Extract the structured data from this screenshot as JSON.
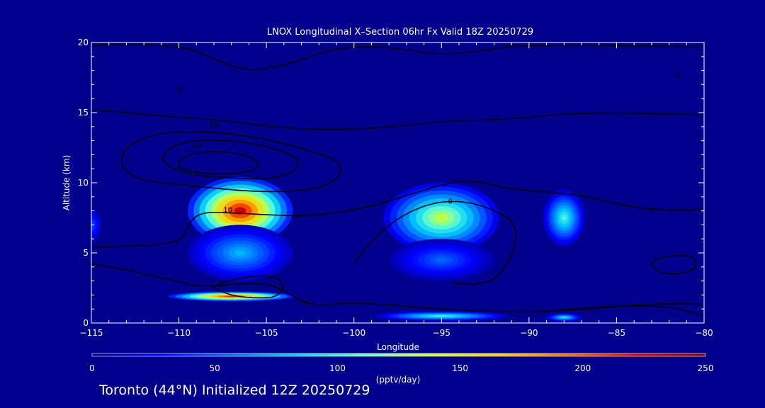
{
  "chart_data": {
    "type": "heatmap",
    "title": "LNOX Longitudinal X–Section 06hr  Fx Valid 18Z 20250729",
    "xlabel": "Longitude",
    "ylabel": "Altitude (km)",
    "xlim": [
      -115,
      -80
    ],
    "ylim": [
      0,
      20
    ],
    "x_ticks": [
      -115,
      -110,
      -105,
      -100,
      -95,
      -90,
      -85,
      -80
    ],
    "x_tick_labels": [
      "−115",
      "−110",
      "−105",
      "−100",
      "−95",
      "−90",
      "−85",
      "−80"
    ],
    "y_ticks": [
      0,
      5,
      10,
      15,
      20
    ],
    "y_tick_labels": [
      "0",
      "5",
      "10",
      "15",
      "20"
    ],
    "colorbar": {
      "label": "(pptv/day)",
      "range": [
        0,
        250
      ],
      "ticks": [
        0,
        50,
        100,
        150,
        200,
        250
      ],
      "tick_labels": [
        "0",
        "50",
        "100",
        "150",
        "200",
        "250"
      ],
      "colors": [
        "#00008c",
        "#0000ff",
        "#0066ff",
        "#00ccff",
        "#66ffcc",
        "#ccff33",
        "#ffcc00",
        "#ff6600",
        "#dd0000",
        "#8b0000"
      ]
    },
    "cells": [
      {
        "name": "cell-west-upper",
        "lon": -106.5,
        "alt": 8.0,
        "lon_halfwidth": 3.0,
        "alt_halfwidth": 2.4,
        "peak": 250
      },
      {
        "name": "cell-west-lower",
        "lon": -106.5,
        "alt": 5.0,
        "lon_halfwidth": 3.0,
        "alt_halfwidth": 2.0,
        "peak": 85
      },
      {
        "name": "cell-west-low-band",
        "lon": -107.0,
        "alt": 1.9,
        "lon_halfwidth": 3.6,
        "alt_halfwidth": 0.35,
        "peak": 235
      },
      {
        "name": "cell-central",
        "lon": -95.0,
        "alt": 7.5,
        "lon_halfwidth": 3.3,
        "alt_halfwidth": 2.5,
        "peak": 150
      },
      {
        "name": "cell-central-low",
        "lon": -95.0,
        "alt": 4.5,
        "lon_halfwidth": 3.0,
        "alt_halfwidth": 1.5,
        "peak": 60
      },
      {
        "name": "cell-surface-band",
        "lon": -95.0,
        "alt": 0.5,
        "lon_halfwidth": 3.8,
        "alt_halfwidth": 0.35,
        "peak": 115
      },
      {
        "name": "cell-east",
        "lon": -88.0,
        "alt": 7.5,
        "lon_halfwidth": 1.2,
        "alt_halfwidth": 2.0,
        "peak": 115
      },
      {
        "name": "cell-east-surface",
        "lon": -88.0,
        "alt": 0.4,
        "lon_halfwidth": 1.0,
        "alt_halfwidth": 0.3,
        "peak": 105
      },
      {
        "name": "cell-west-edge",
        "lon": -115.0,
        "alt": 7.0,
        "lon_halfwidth": 0.6,
        "alt_halfwidth": 1.2,
        "peak": 55
      }
    ],
    "contour_labels": [
      {
        "text": "0",
        "lon": -110.0,
        "alt": 16.5
      },
      {
        "text": "10",
        "lon": -108.0,
        "alt": 14.0
      },
      {
        "text": "20",
        "lon": -109.0,
        "alt": 12.5
      },
      {
        "text": "10",
        "lon": -107.2,
        "alt": 7.9
      },
      {
        "text": "0",
        "lon": -94.5,
        "alt": 8.5
      },
      {
        "text": "0",
        "lon": -83.0,
        "alt": 7.9
      },
      {
        "text": "0",
        "lon": -81.5,
        "alt": 17.5
      },
      {
        "text": "0",
        "lon": -102.8,
        "alt": 1.2
      }
    ]
  },
  "footer": {
    "text": "Toronto (44°N) Initialized 12Z 20250729"
  }
}
